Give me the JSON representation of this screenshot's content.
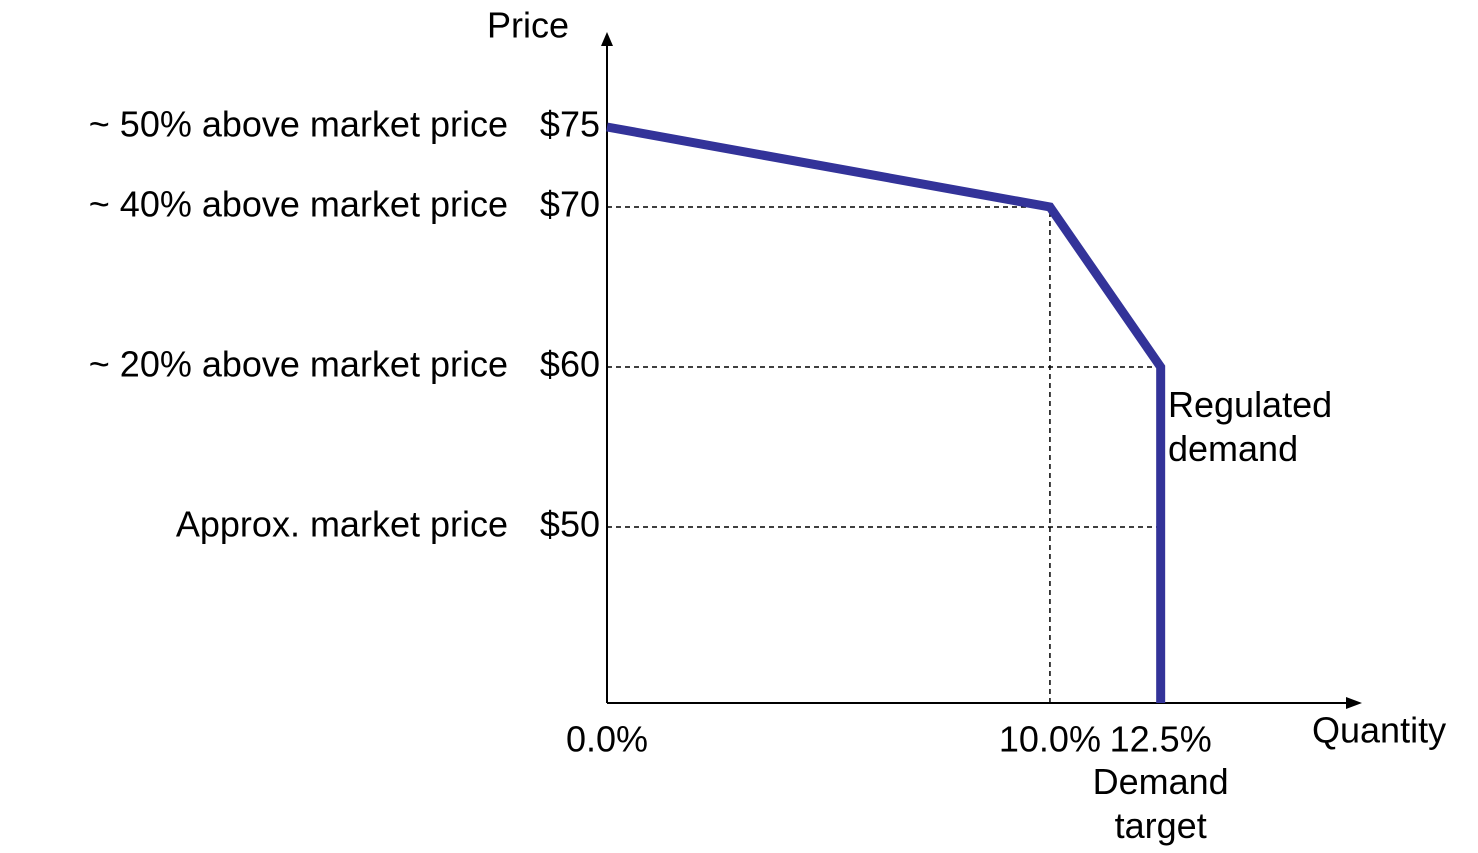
{
  "chart_data": {
    "type": "line",
    "x_label": "Quantity",
    "y_label": "Price",
    "x": [
      0,
      10,
      12.5,
      12.5
    ],
    "values": [
      75,
      70,
      60,
      39
    ],
    "color": "#333399",
    "xlim": [
      0,
      17
    ],
    "ylim": [
      39,
      80
    ],
    "xticks": [
      {
        "value": 0,
        "label": "0.0%"
      },
      {
        "value": 10,
        "label": "10.0%"
      },
      {
        "value": 12.5,
        "label": "12.5%"
      }
    ],
    "yticks": [
      {
        "value": 50,
        "label": "$50"
      },
      {
        "value": 60,
        "label": "$60"
      },
      {
        "value": 70,
        "label": "$70"
      },
      {
        "value": 75,
        "label": "$75"
      }
    ],
    "ytick_notes": [
      "Approx. market price",
      "~ 20% above market price",
      "~ 40% above market price",
      "~ 50% above market price"
    ],
    "line_label": "Regulated demand",
    "xtick_note": "Demand target",
    "guides": true
  }
}
